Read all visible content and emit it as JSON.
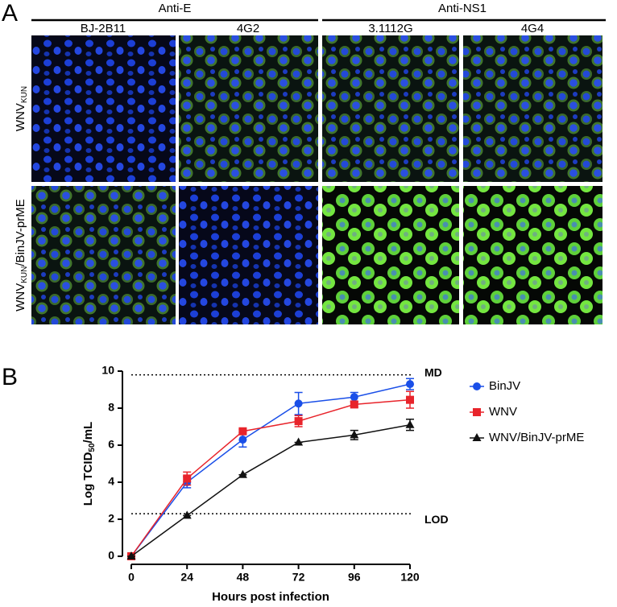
{
  "panel_a": {
    "label": "A",
    "groups": [
      "Anti-E",
      "Anti-NS1"
    ],
    "columns": [
      "BJ-2B11",
      "4G2",
      "3.1112G",
      "4G4"
    ],
    "rows": [
      {
        "main": "WNV",
        "sub": "KUN"
      },
      {
        "main": "WNV",
        "sub": "KUN",
        "rest": "/BinJV-prME"
      }
    ]
  },
  "chart_data": {
    "type": "line",
    "panel_label": "B",
    "x_label": "Hours post infection",
    "y_label": {
      "main": "Log TCID",
      "sub": "50",
      "rest": "/mL"
    },
    "x": [
      0,
      24,
      48,
      72,
      96,
      120
    ],
    "xlim": [
      0,
      120
    ],
    "xticks": [
      0,
      24,
      48,
      72,
      96,
      120
    ],
    "ylim": [
      0,
      10
    ],
    "yticks": [
      0,
      2,
      4,
      6,
      8,
      10
    ],
    "hlines": [
      {
        "value": 9.8,
        "label": "MD"
      },
      {
        "value": 2.3,
        "label": "LOD"
      }
    ],
    "series": [
      {
        "name": "BinJV",
        "color": "#1a4fe8",
        "marker": "circle",
        "values": [
          0,
          4.0,
          6.3,
          8.25,
          8.6,
          9.3
        ],
        "errors": [
          0,
          0.3,
          0.4,
          0.6,
          0.25,
          0.3
        ]
      },
      {
        "name": "WNV",
        "color": "#e8242b",
        "marker": "square",
        "values": [
          0,
          4.2,
          6.75,
          7.3,
          8.2,
          8.45
        ],
        "errors": [
          0,
          0.35,
          0.1,
          0.3,
          0.15,
          0.45
        ]
      },
      {
        "name": "WNV/BinJV-prME",
        "color": "#111111",
        "marker": "triangle",
        "values": [
          0,
          2.2,
          4.4,
          6.15,
          6.55,
          7.1
        ],
        "errors": [
          0,
          0,
          0,
          0,
          0.25,
          0.3
        ]
      }
    ]
  }
}
